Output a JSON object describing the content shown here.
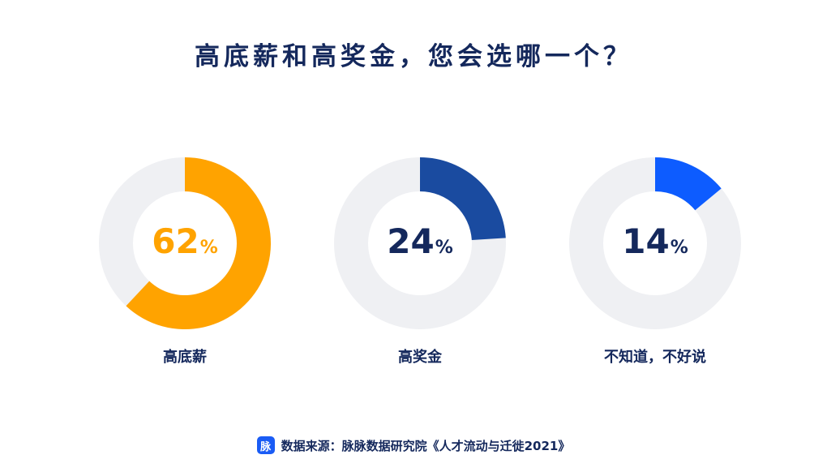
{
  "title": "高底薪和高奖金，您会选哪一个？",
  "chart_data": {
    "type": "pie",
    "categories": [
      "高底薪",
      "高奖金",
      "不知道，不好说"
    ],
    "values": [
      62,
      24,
      14
    ],
    "unit": "%",
    "colors": [
      "#ffa300",
      "#1a4ba0",
      "#0d5cff"
    ],
    "track_color": "#eff0f3"
  },
  "source": {
    "logo_text": "脉",
    "text": "数据来源：脉脉数据研究院《人才流动与迁徙2021》"
  }
}
